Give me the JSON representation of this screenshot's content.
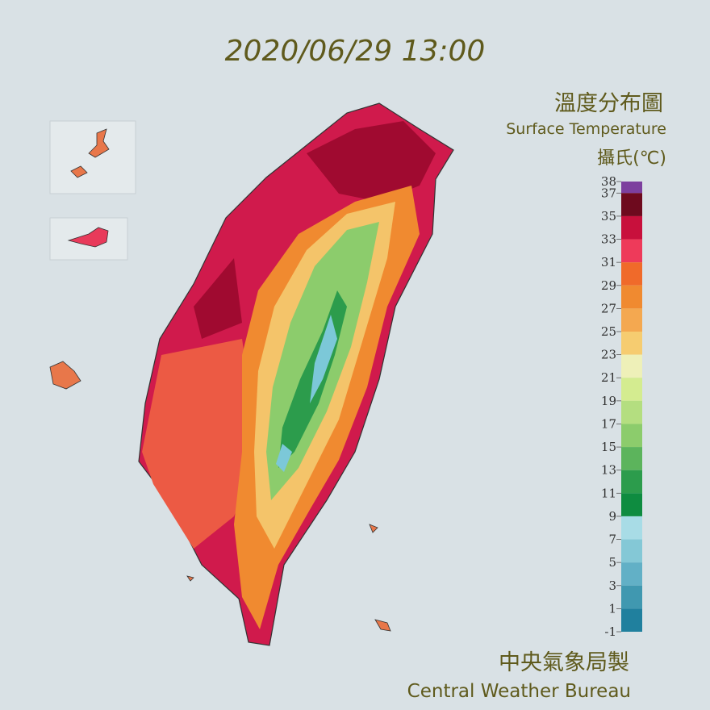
{
  "title": "2020/06/29 13:00",
  "legend": {
    "title": "溫度分布圖",
    "subtitle": "Surface Temperature",
    "unit": "攝氏(℃)",
    "ticks": [
      38,
      37,
      35,
      33,
      31,
      29,
      27,
      25,
      23,
      21,
      19,
      17,
      15,
      13,
      11,
      9,
      7,
      5,
      3,
      1,
      -1
    ],
    "colors": [
      "#7d3f9e",
      "#6e0a1e",
      "#c8103c",
      "#ee3a5a",
      "#f06a2a",
      "#f08a30",
      "#f4a850",
      "#f6cc70",
      "#eef0b8",
      "#d4ec90",
      "#b4de80",
      "#8ccc6c",
      "#5cb45c",
      "#2c9c4c",
      "#0e8c40",
      "#a8dce6",
      "#84c8d6",
      "#62b0c6",
      "#4098b0",
      "#20809e"
    ]
  },
  "footer": {
    "chinese": "中央氣象局製",
    "english": "Central Weather Bureau"
  }
}
